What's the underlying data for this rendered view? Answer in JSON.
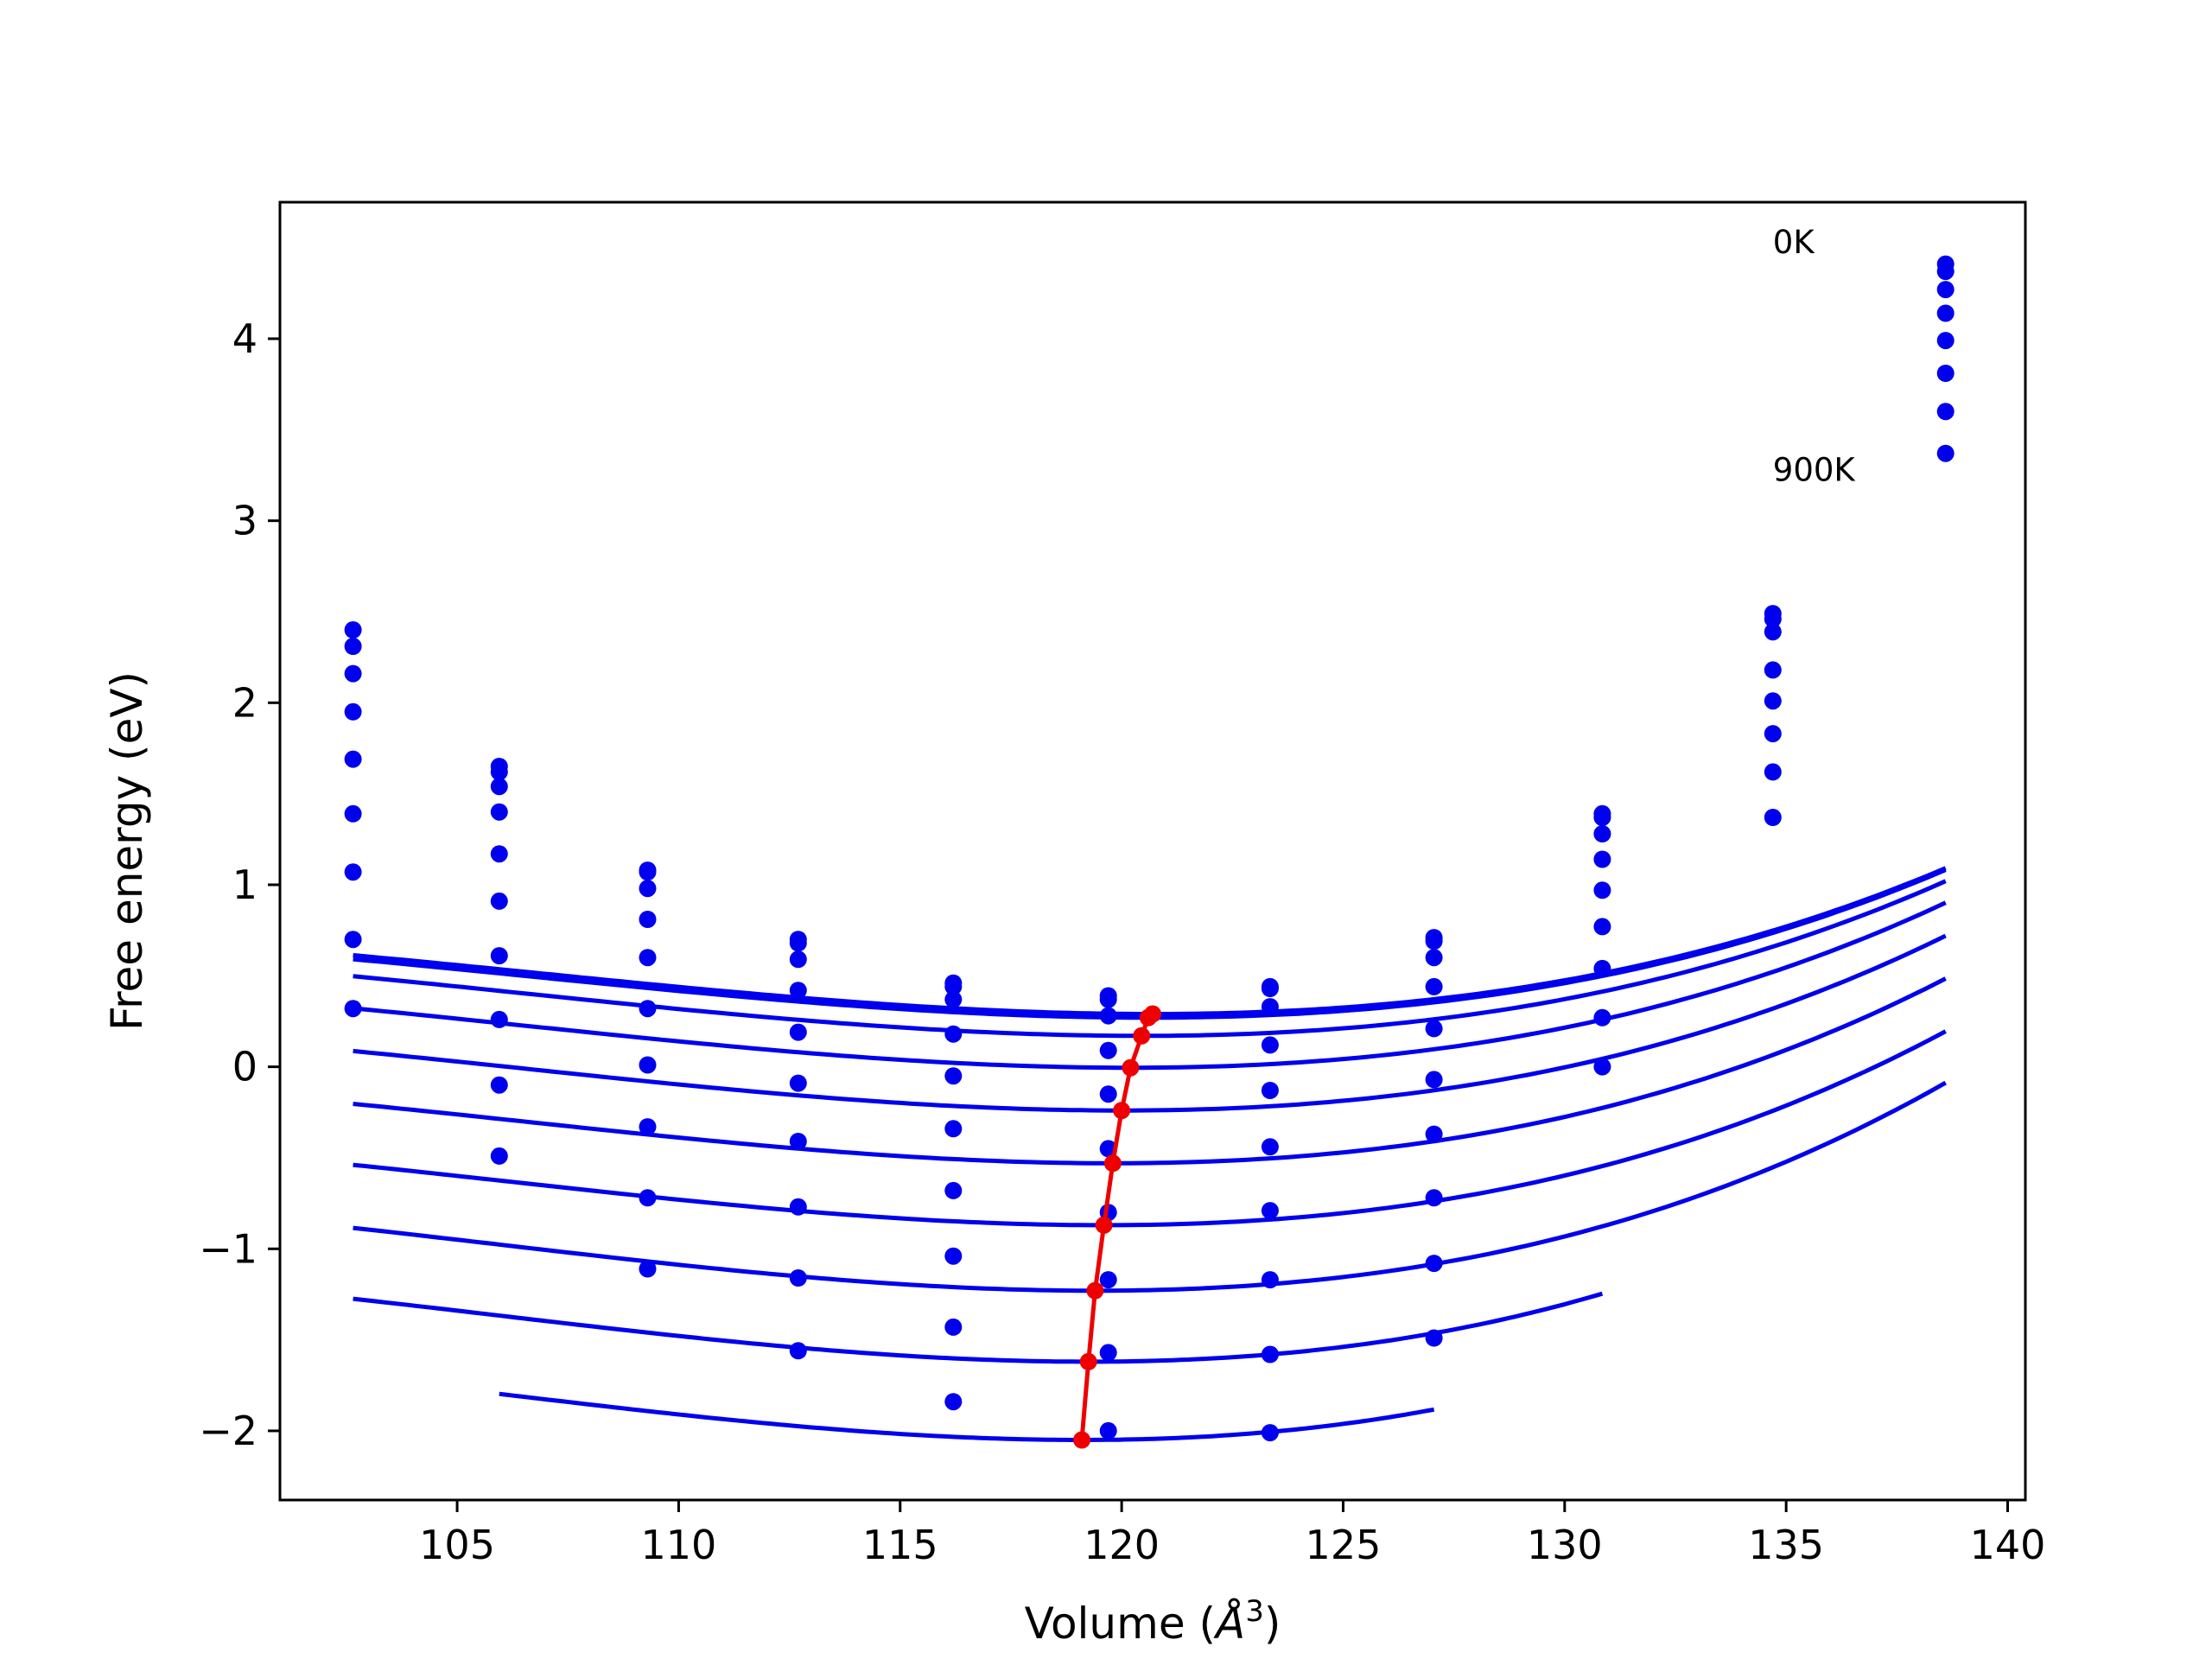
{
  "chart_data": {
    "type": "scatter",
    "title": "",
    "xlabel": "Volume ($Å^3$)",
    "xlabel_main": "Volume (",
    "xlabel_symbol": "Å",
    "xlabel_exp": "3",
    "xlabel_close": ")",
    "ylabel": "Free energy (eV)",
    "xlim": [
      101,
      140.4
    ],
    "ylim": [
      -2.38,
      4.75
    ],
    "xticks": [
      105,
      110,
      115,
      120,
      125,
      130,
      135,
      140
    ],
    "yticks": [
      -2,
      -1,
      0,
      1,
      2,
      3,
      4
    ],
    "ytick_labels": [
      "−2",
      "−1",
      "0",
      "1",
      "2",
      "3",
      "4"
    ],
    "grid": false,
    "annotations": [
      {
        "text": "0K",
        "x": 134.7,
        "y": 4.47
      },
      {
        "text": "900K",
        "x": 134.7,
        "y": 3.22
      }
    ],
    "volumes": [
      102.65,
      105.95,
      109.3,
      112.7,
      116.2,
      119.7,
      123.35,
      127.05,
      130.85,
      134.7,
      138.6
    ],
    "series": [
      {
        "energies": [
          2.31,
          1.65,
          1.08,
          0.68,
          0.46,
          0.39,
          0.44,
          0.71,
          1.39,
          2.49,
          4.41
        ],
        "fit": {
          "e0": 0.29,
          "v0": 120.7,
          "b": 0.00175,
          "c": 4.2e-05
        }
      },
      {
        "energies": [
          2.4,
          1.62,
          1.07,
          0.7,
          0.44,
          0.37,
          0.43,
          0.69,
          1.37,
          2.46,
          4.37
        ],
        "fit": {
          "e0": 0.27,
          "v0": 120.6,
          "b": 0.00175,
          "c": 4.2e-05
        }
      },
      {
        "energies": [
          2.16,
          1.54,
          0.98,
          0.59,
          0.37,
          0.28,
          0.33,
          0.6,
          1.28,
          2.39,
          4.27
        ],
        "fit": {
          "e0": 0.17,
          "v0": 120.45,
          "b": 0.0018,
          "c": 4.3e-05
        }
      },
      {
        "energies": [
          1.95,
          1.4,
          0.81,
          0.42,
          0.18,
          0.09,
          0.12,
          0.44,
          1.14,
          2.18,
          4.14
        ],
        "fit": {
          "e0": -0.005,
          "v0": 120.2,
          "b": 0.00185,
          "c": 4.5e-05
        }
      },
      {
        "energies": [
          1.69,
          1.17,
          0.6,
          0.19,
          -0.05,
          -0.15,
          -0.13,
          0.21,
          0.97,
          2.01,
          3.99
        ],
        "fit": {
          "e0": -0.24,
          "v0": 120.0,
          "b": 0.0019,
          "c": 4.7e-05
        }
      },
      {
        "energies": [
          1.39,
          0.91,
          0.32,
          -0.09,
          -0.34,
          -0.45,
          -0.44,
          -0.07,
          0.77,
          1.83,
          3.81
        ],
        "fit": {
          "e0": -0.53,
          "v0": 119.8,
          "b": 0.00195,
          "c": 4.9e-05
        }
      },
      {
        "energies": [
          1.07,
          0.61,
          0.01,
          -0.41,
          -0.68,
          -0.8,
          -0.79,
          -0.37,
          0.54,
          1.62,
          3.6
        ],
        "fit": {
          "e0": -0.87,
          "v0": 119.6,
          "b": 0.002,
          "c": 5e-05
        }
      },
      {
        "energies": [
          0.7,
          0.26,
          -0.33,
          -0.77,
          -1.04,
          -1.17,
          -1.17,
          -0.72,
          0.27,
          1.37,
          3.37
        ],
        "fit": {
          "e0": -1.23,
          "v0": 119.4,
          "b": 0.0021,
          "c": 5.2e-05
        }
      },
      {
        "energies": [
          0.32,
          -0.1,
          -0.72,
          -1.16,
          -1.43,
          -1.57,
          -1.58,
          -1.08,
          0.0,
          null,
          null
        ],
        "fit": {
          "e0": -1.62,
          "v0": 119.25,
          "b": 0.00215,
          "c": 5.4e-05
        }
      },
      {
        "energies": [
          null,
          -0.49,
          -1.11,
          -1.56,
          -1.84,
          -2.0,
          -2.01,
          -1.49,
          null,
          null,
          null
        ],
        "fit": {
          "e0": -2.05,
          "v0": 119.1,
          "b": 0.0022,
          "c": 5.6e-05
        }
      }
    ],
    "minima": {
      "v": [
        120.7,
        120.6,
        120.45,
        120.2,
        120.0,
        119.8,
        119.6,
        119.4,
        119.25,
        119.1
      ],
      "e": [
        0.29,
        0.27,
        0.17,
        -0.005,
        -0.24,
        -0.53,
        -0.87,
        -1.23,
        -1.62,
        -2.05
      ]
    },
    "colors": {
      "series": "#0000ee",
      "minima": "#ee0000",
      "axes": "#000000"
    }
  }
}
